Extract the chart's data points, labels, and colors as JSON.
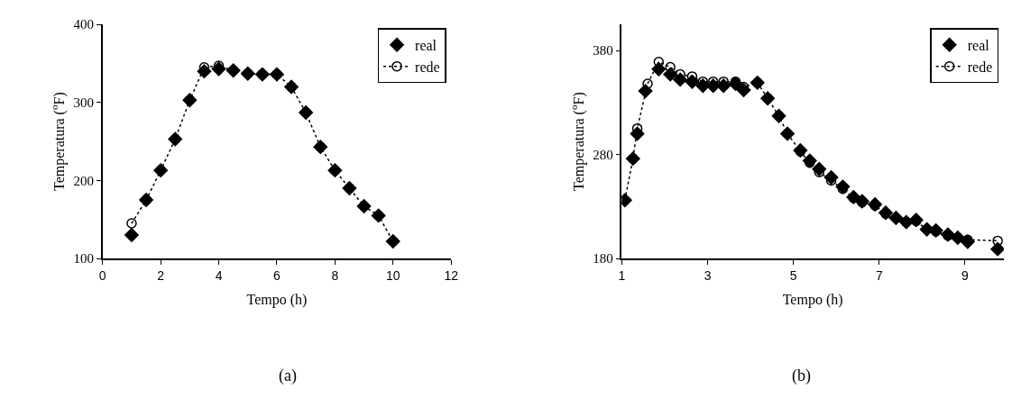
{
  "chart_data": [
    {
      "type": "scatter",
      "xlabel": "Tempo (h)",
      "ylabel": "Temperatura ($^{o}$F)",
      "annotations": [
        "(a)"
      ],
      "xlim": [
        0,
        12
      ],
      "xticks": [
        0,
        2,
        4,
        6,
        8,
        10,
        12
      ],
      "ylim": [
        100,
        400
      ],
      "yticks": [
        100,
        200,
        300,
        400
      ],
      "legend": "top right",
      "series": [
        {
          "name": "real",
          "color": "#000000",
          "marker": "diamond",
          "x": [
            1,
            1.5,
            2,
            2.5,
            3,
            3.5,
            4,
            4.5,
            5,
            5.5,
            6,
            6.5,
            7,
            7.5,
            8,
            8.5,
            9,
            9.5,
            10
          ],
          "values": [
            130,
            175,
            213,
            253,
            303,
            340,
            343,
            341,
            337,
            336,
            336,
            320,
            287,
            243,
            213,
            190,
            167,
            155,
            122
          ]
        },
        {
          "name": "rede",
          "type": "line",
          "color": "#000000",
          "marker": "circle",
          "line_style": "dotted",
          "x": [
            1,
            1.5,
            2,
            2.5,
            3,
            3.5,
            4,
            4.5,
            5,
            5.5,
            6,
            6.5,
            7,
            7.5,
            8,
            8.5,
            9,
            9.5,
            10
          ],
          "values": [
            145,
            175,
            213,
            253,
            303,
            345,
            347,
            341,
            337,
            336,
            336,
            320,
            287,
            243,
            213,
            190,
            167,
            155,
            122
          ]
        }
      ]
    },
    {
      "type": "scatter",
      "xlabel": "Tempo (h)",
      "ylabel": "Temperatura ($^{o}$F)",
      "annotations": [
        "(b)"
      ],
      "xlim": [
        1,
        9.9
      ],
      "xticks": [
        1,
        3,
        5,
        7,
        9
      ],
      "ylim": [
        180,
        405
      ],
      "yticks": [
        180,
        280,
        380
      ],
      "legend": "top right",
      "series": [
        {
          "name": "real",
          "color": "#000000",
          "marker": "diamond",
          "x": [
            1.07,
            1.26,
            1.36,
            1.55,
            1.86,
            2.13,
            2.36,
            2.64,
            2.89,
            3.13,
            3.37,
            3.65,
            3.84,
            4.16,
            4.4,
            4.66,
            4.86,
            5.16,
            5.38,
            5.6,
            5.88,
            6.15,
            6.4,
            6.6,
            6.9,
            7.15,
            7.39,
            7.63,
            7.86,
            8.11,
            8.32,
            8.6,
            8.83,
            9.06,
            9.76
          ],
          "values": [
            236,
            276,
            300,
            341,
            362,
            357,
            352,
            350,
            346,
            346,
            346,
            348,
            342,
            349,
            334,
            317,
            300,
            284,
            274,
            266,
            258,
            249,
            239,
            235,
            232,
            224,
            219,
            215,
            217,
            208,
            207,
            203,
            200,
            196,
            189
          ]
        },
        {
          "name": "rede",
          "type": "line",
          "color": "#000000",
          "marker": "circle",
          "line_style": "dotted",
          "x": [
            1.07,
            1.26,
            1.36,
            1.6,
            1.86,
            2.13,
            2.36,
            2.64,
            2.89,
            3.13,
            3.37,
            3.65,
            3.84,
            4.16,
            4.4,
            4.66,
            4.86,
            5.16,
            5.38,
            5.6,
            5.88,
            6.15,
            6.4,
            6.6,
            6.9,
            7.15,
            7.39,
            7.63,
            7.86,
            8.11,
            8.32,
            8.6,
            8.83,
            9.06,
            9.76
          ],
          "values": [
            236,
            276,
            305,
            348,
            369,
            364,
            357,
            355,
            350,
            350,
            350,
            350,
            345,
            349,
            334,
            317,
            300,
            283,
            272,
            263,
            255,
            247,
            238,
            234,
            231,
            223,
            219,
            215,
            216,
            208,
            206,
            202,
            200,
            198,
            197
          ]
        }
      ]
    }
  ]
}
